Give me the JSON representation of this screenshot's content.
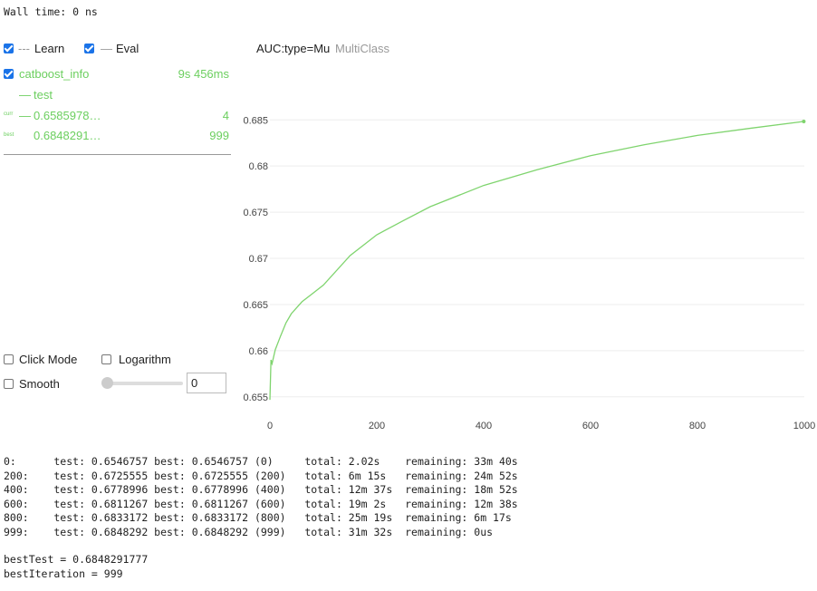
{
  "wall_time": "Wall time: 0 ns",
  "legend": {
    "learn": "Learn",
    "eval": "Eval"
  },
  "run": {
    "name": "catboost_info",
    "time": "9s 456ms",
    "curr_label": "curr",
    "curr_value": "0.6585978…",
    "curr_iter": "4",
    "best_label": "best",
    "best_value": "0.6848291…",
    "best_iter": "999"
  },
  "controls": {
    "click_mode": "Click Mode",
    "logarithm": "Logarithm",
    "smooth": "Smooth",
    "smooth_value": "0"
  },
  "chart_data": {
    "type": "line",
    "title": "AUC:type=Mu",
    "subtitle": "MultiClass",
    "x": [
      0,
      2,
      4,
      10,
      20,
      30,
      40,
      60,
      80,
      100,
      150,
      200,
      250,
      300,
      400,
      500,
      600,
      700,
      800,
      900,
      999
    ],
    "series": [
      {
        "name": "test",
        "color": "#7fd46e",
        "values": [
          0.6546757,
          0.659,
          0.6586,
          0.6601,
          0.6616,
          0.663,
          0.664,
          0.6653,
          0.6662,
          0.6671,
          0.6703,
          0.6725555,
          0.6741,
          0.6756,
          0.6778996,
          0.6796,
          0.6811267,
          0.6823,
          0.6833172,
          0.6841,
          0.6848292
        ]
      }
    ],
    "xlim": [
      0,
      1000
    ],
    "ylim": [
      0.6538,
      0.6864
    ],
    "xticks": [
      0,
      200,
      400,
      600,
      800,
      1000
    ],
    "yticks": [
      0.655,
      0.66,
      0.665,
      0.67,
      0.675,
      0.68,
      0.685
    ],
    "grid": true
  },
  "log": {
    "lines": [
      "0:      test: 0.6546757 best: 0.6546757 (0)     total: 2.02s    remaining: 33m 40s",
      "200:    test: 0.6725555 best: 0.6725555 (200)   total: 6m 15s   remaining: 24m 52s",
      "400:    test: 0.6778996 best: 0.6778996 (400)   total: 12m 37s  remaining: 18m 52s",
      "600:    test: 0.6811267 best: 0.6811267 (600)   total: 19m 2s   remaining: 12m 38s",
      "800:    test: 0.6833172 best: 0.6833172 (800)   total: 25m 19s  remaining: 6m 17s",
      "999:    test: 0.6848292 best: 0.6848292 (999)   total: 31m 32s  remaining: 0us"
    ]
  },
  "summary": [
    "bestTest = 0.6848291777",
    "bestIteration = 999"
  ]
}
